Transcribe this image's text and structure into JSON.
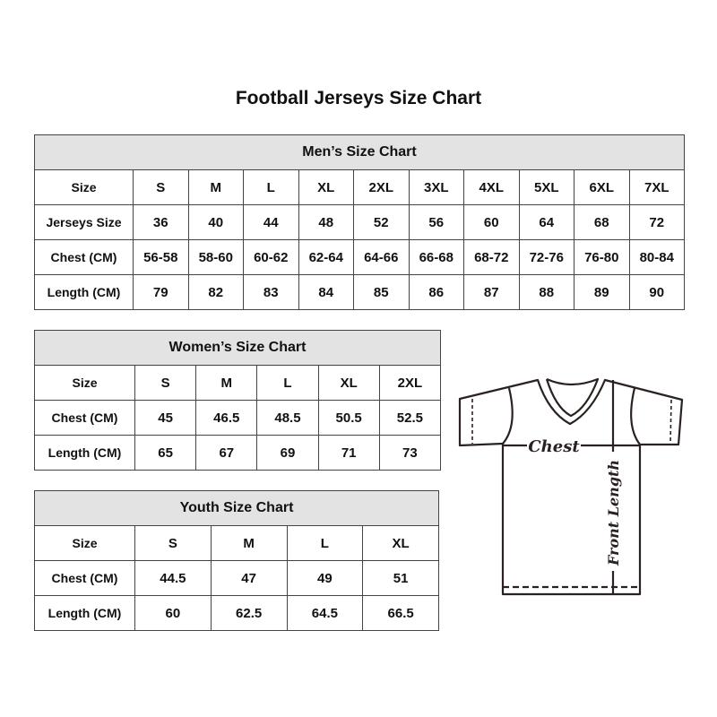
{
  "title": "Football Jerseys Size Chart",
  "men": {
    "heading": "Men’s Size Chart",
    "rows": [
      {
        "label": "Size",
        "values": [
          "S",
          "M",
          "L",
          "XL",
          "2XL",
          "3XL",
          "4XL",
          "5XL",
          "6XL",
          "7XL"
        ]
      },
      {
        "label": "Jerseys Size",
        "values": [
          "36",
          "40",
          "44",
          "48",
          "52",
          "56",
          "60",
          "64",
          "68",
          "72"
        ]
      },
      {
        "label": "Chest (CM)",
        "values": [
          "56-58",
          "58-60",
          "60-62",
          "62-64",
          "64-66",
          "66-68",
          "68-72",
          "72-76",
          "76-80",
          "80-84"
        ]
      },
      {
        "label": "Length (CM)",
        "values": [
          "79",
          "82",
          "83",
          "84",
          "85",
          "86",
          "87",
          "88",
          "89",
          "90"
        ]
      }
    ]
  },
  "women": {
    "heading": "Women’s Size Chart",
    "rows": [
      {
        "label": "Size",
        "values": [
          "S",
          "M",
          "L",
          "XL",
          "2XL"
        ]
      },
      {
        "label": "Chest (CM)",
        "values": [
          "45",
          "46.5",
          "48.5",
          "50.5",
          "52.5"
        ]
      },
      {
        "label": "Length (CM)",
        "values": [
          "65",
          "67",
          "69",
          "71",
          "73"
        ]
      }
    ]
  },
  "youth": {
    "heading": "Youth Size Chart",
    "rows": [
      {
        "label": "Size",
        "values": [
          "S",
          "M",
          "L",
          "XL"
        ]
      },
      {
        "label": "Chest (CM)",
        "values": [
          "44.5",
          "47",
          "49",
          "51"
        ]
      },
      {
        "label": "Length (CM)",
        "values": [
          "60",
          "62.5",
          "64.5",
          "66.5"
        ]
      }
    ]
  },
  "diagram": {
    "chest_label": "Chest",
    "length_label": "Front Length"
  },
  "colors": {
    "header_bg": "#e3e3e3",
    "border": "#444444",
    "shirt_line": "#2a2220"
  }
}
